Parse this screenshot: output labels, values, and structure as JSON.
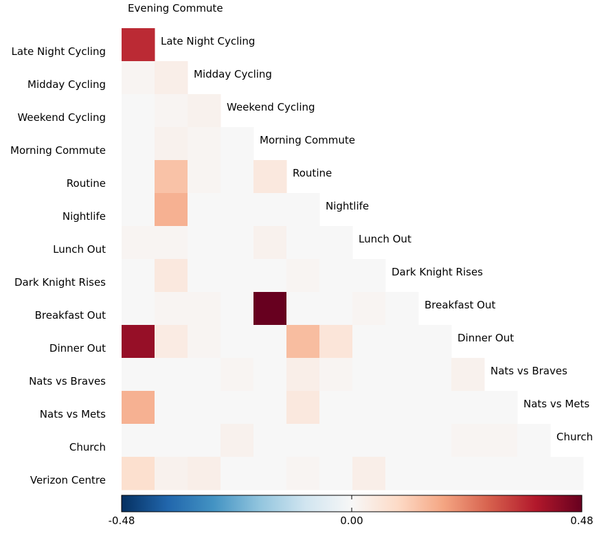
{
  "chart_data": {
    "type": "heatmap",
    "title": "",
    "xlabel": "",
    "ylabel": "",
    "layout": "lower-triangle",
    "column_labels": [
      "Evening Commute",
      "Late Night Cycling",
      "Midday Cycling",
      "Weekend Cycling",
      "Morning Commute",
      "Routine",
      "Nightlife",
      "Lunch Out",
      "Dark Knight Rises",
      "Breakfast Out",
      "Dinner Out",
      "Nats vs Braves",
      "Nats vs Mets",
      "Church"
    ],
    "row_labels": [
      "Late Night Cycling",
      "Midday Cycling",
      "Weekend Cycling",
      "Morning Commute",
      "Routine",
      "Nightlife",
      "Lunch Out",
      "Dark Knight Rises",
      "Breakfast Out",
      "Dinner Out",
      "Nats vs Braves",
      "Nats vs Mets",
      "Church",
      "Verizon Centre"
    ],
    "values": [
      [
        0.36
      ],
      [
        0.01,
        0.03
      ],
      [
        0.0,
        0.01,
        0.02
      ],
      [
        0.0,
        0.02,
        0.01,
        0.0
      ],
      [
        0.0,
        0.14,
        0.01,
        0.0,
        0.05
      ],
      [
        0.0,
        0.17,
        0.0,
        0.0,
        0.0,
        0.0
      ],
      [
        0.01,
        0.01,
        0.0,
        0.0,
        0.02,
        0.0,
        0.0
      ],
      [
        0.0,
        0.05,
        0.0,
        0.0,
        0.0,
        0.01,
        0.0,
        0.0
      ],
      [
        0.0,
        0.01,
        0.01,
        0.0,
        0.48,
        0.0,
        0.0,
        0.01,
        0.0
      ],
      [
        0.42,
        0.04,
        0.01,
        0.0,
        0.0,
        0.15,
        0.06,
        0.0,
        0.0,
        0.0
      ],
      [
        0.0,
        0.0,
        0.0,
        0.01,
        0.0,
        0.03,
        0.01,
        0.0,
        0.0,
        0.0,
        0.02
      ],
      [
        0.17,
        0.0,
        0.0,
        0.0,
        0.0,
        0.05,
        0.0,
        0.0,
        0.0,
        0.0,
        0.0,
        0.0
      ],
      [
        0.0,
        0.0,
        0.0,
        0.02,
        0.0,
        0.0,
        0.0,
        0.0,
        0.0,
        0.0,
        0.01,
        0.01,
        0.0
      ],
      [
        0.08,
        0.02,
        0.03,
        0.0,
        0.0,
        0.01,
        0.0,
        0.03,
        0.0,
        0.0,
        0.0,
        0.0,
        0.0,
        0.0
      ]
    ],
    "colorbar": {
      "colormap": "RdBu_r",
      "range": [
        -0.48,
        0.48
      ],
      "tick_labels": [
        "-0.48",
        "0.00",
        "0.48"
      ]
    }
  }
}
